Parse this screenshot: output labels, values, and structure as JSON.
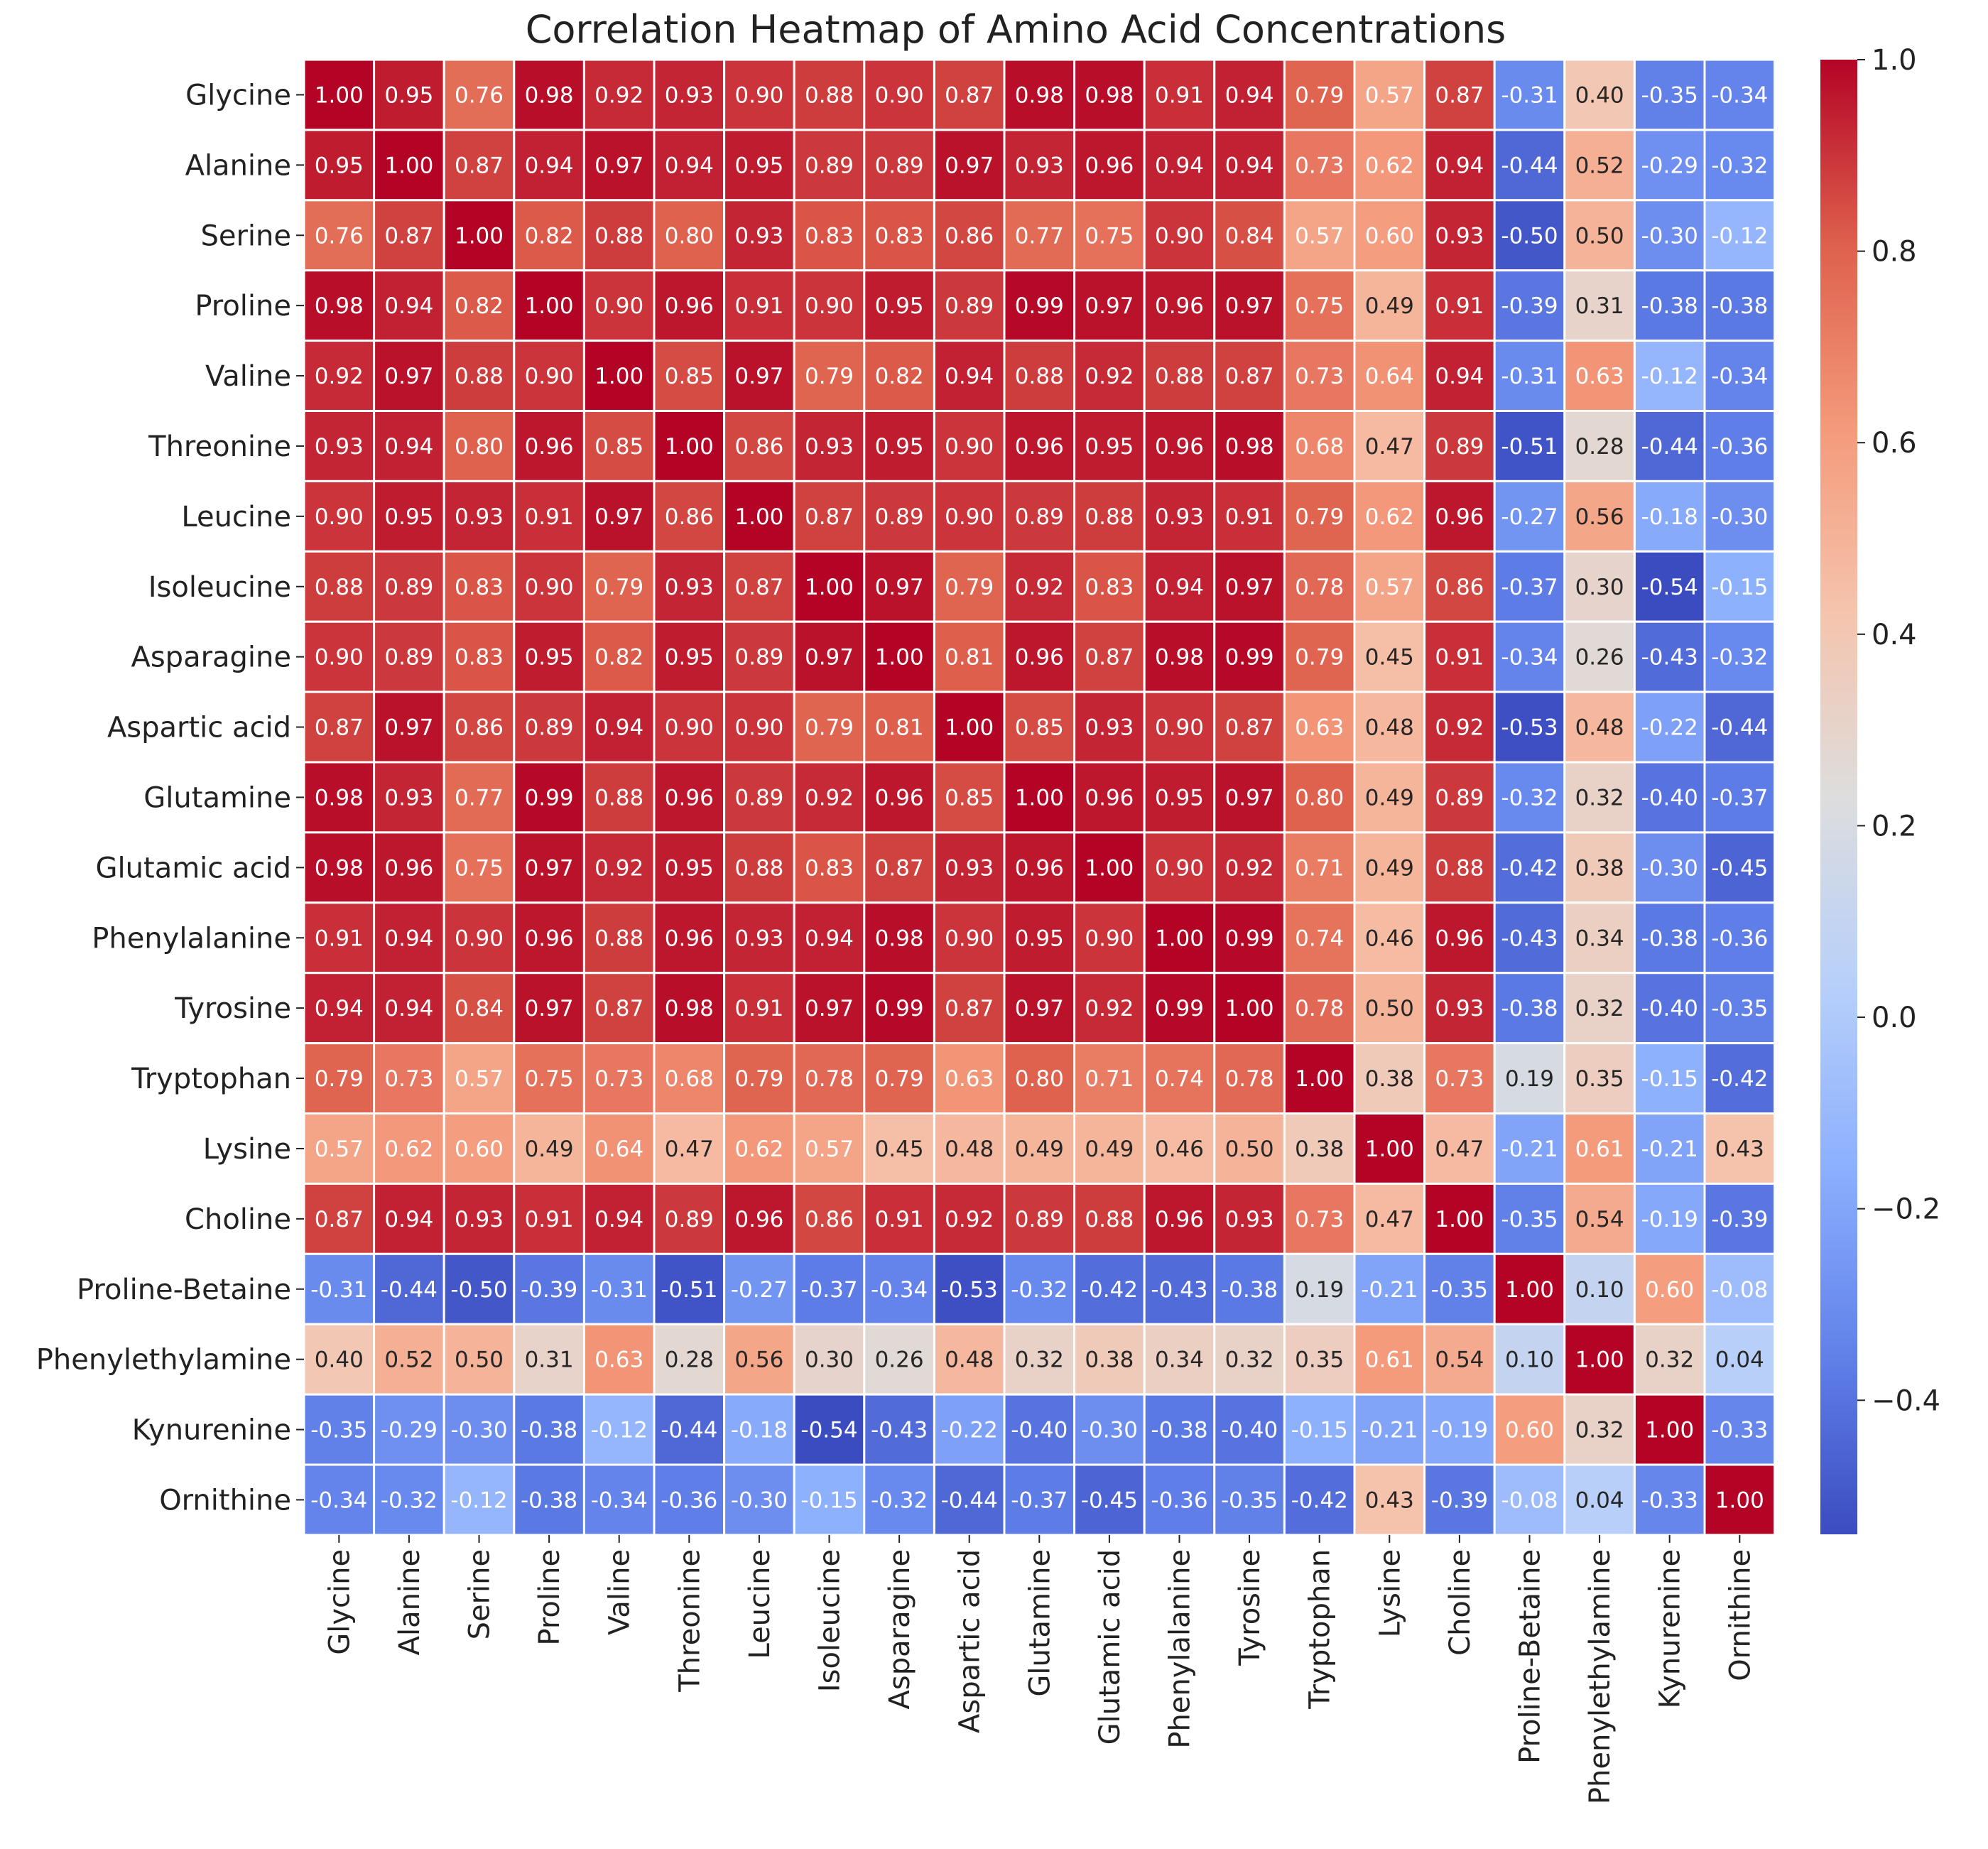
{
  "chart_data": {
    "type": "heatmap",
    "title": "Correlation Heatmap of Amino Acid Concentrations",
    "xlabel": "",
    "ylabel": "",
    "labels": [
      "Glycine",
      "Alanine",
      "Serine",
      "Proline",
      "Valine",
      "Threonine",
      "Leucine",
      "Isoleucine",
      "Asparagine",
      "Aspartic acid",
      "Glutamine",
      "Glutamic acid",
      "Phenylalanine",
      "Tyrosine",
      "Tryptophan",
      "Lysine",
      "Choline",
      "Proline-Betaine",
      "Phenylethylamine",
      "Kynurenine",
      "Ornithine"
    ],
    "matrix": [
      [
        1.0,
        0.95,
        0.76,
        0.98,
        0.92,
        0.93,
        0.9,
        0.88,
        0.9,
        0.87,
        0.98,
        0.98,
        0.91,
        0.94,
        0.79,
        0.57,
        0.87,
        -0.31,
        0.4,
        -0.35,
        -0.34
      ],
      [
        0.95,
        1.0,
        0.87,
        0.94,
        0.97,
        0.94,
        0.95,
        0.89,
        0.89,
        0.97,
        0.93,
        0.96,
        0.94,
        0.94,
        0.73,
        0.62,
        0.94,
        -0.44,
        0.52,
        -0.29,
        -0.32
      ],
      [
        0.76,
        0.87,
        1.0,
        0.82,
        0.88,
        0.8,
        0.93,
        0.83,
        0.83,
        0.86,
        0.77,
        0.75,
        0.9,
        0.84,
        0.57,
        0.6,
        0.93,
        -0.5,
        0.5,
        -0.3,
        -0.12
      ],
      [
        0.98,
        0.94,
        0.82,
        1.0,
        0.9,
        0.96,
        0.91,
        0.9,
        0.95,
        0.89,
        0.99,
        0.97,
        0.96,
        0.97,
        0.75,
        0.49,
        0.91,
        -0.39,
        0.31,
        -0.38,
        -0.38
      ],
      [
        0.92,
        0.97,
        0.88,
        0.9,
        1.0,
        0.85,
        0.97,
        0.79,
        0.82,
        0.94,
        0.88,
        0.92,
        0.88,
        0.87,
        0.73,
        0.64,
        0.94,
        -0.31,
        0.63,
        -0.12,
        -0.34
      ],
      [
        0.93,
        0.94,
        0.8,
        0.96,
        0.85,
        1.0,
        0.86,
        0.93,
        0.95,
        0.9,
        0.96,
        0.95,
        0.96,
        0.98,
        0.68,
        0.47,
        0.89,
        -0.51,
        0.28,
        -0.44,
        -0.36
      ],
      [
        0.9,
        0.95,
        0.93,
        0.91,
        0.97,
        0.86,
        1.0,
        0.87,
        0.89,
        0.9,
        0.89,
        0.88,
        0.93,
        0.91,
        0.79,
        0.62,
        0.96,
        -0.27,
        0.56,
        -0.18,
        -0.3
      ],
      [
        0.88,
        0.89,
        0.83,
        0.9,
        0.79,
        0.93,
        0.87,
        1.0,
        0.97,
        0.79,
        0.92,
        0.83,
        0.94,
        0.97,
        0.78,
        0.57,
        0.86,
        -0.37,
        0.3,
        -0.54,
        -0.15
      ],
      [
        0.9,
        0.89,
        0.83,
        0.95,
        0.82,
        0.95,
        0.89,
        0.97,
        1.0,
        0.81,
        0.96,
        0.87,
        0.98,
        0.99,
        0.79,
        0.45,
        0.91,
        -0.34,
        0.26,
        -0.43,
        -0.32
      ],
      [
        0.87,
        0.97,
        0.86,
        0.89,
        0.94,
        0.9,
        0.9,
        0.79,
        0.81,
        1.0,
        0.85,
        0.93,
        0.9,
        0.87,
        0.63,
        0.48,
        0.92,
        -0.53,
        0.48,
        -0.22,
        -0.44
      ],
      [
        0.98,
        0.93,
        0.77,
        0.99,
        0.88,
        0.96,
        0.89,
        0.92,
        0.96,
        0.85,
        1.0,
        0.96,
        0.95,
        0.97,
        0.8,
        0.49,
        0.89,
        -0.32,
        0.32,
        -0.4,
        -0.37
      ],
      [
        0.98,
        0.96,
        0.75,
        0.97,
        0.92,
        0.95,
        0.88,
        0.83,
        0.87,
        0.93,
        0.96,
        1.0,
        0.9,
        0.92,
        0.71,
        0.49,
        0.88,
        -0.42,
        0.38,
        -0.3,
        -0.45
      ],
      [
        0.91,
        0.94,
        0.9,
        0.96,
        0.88,
        0.96,
        0.93,
        0.94,
        0.98,
        0.9,
        0.95,
        0.9,
        1.0,
        0.99,
        0.74,
        0.46,
        0.96,
        -0.43,
        0.34,
        -0.38,
        -0.36
      ],
      [
        0.94,
        0.94,
        0.84,
        0.97,
        0.87,
        0.98,
        0.91,
        0.97,
        0.99,
        0.87,
        0.97,
        0.92,
        0.99,
        1.0,
        0.78,
        0.5,
        0.93,
        -0.38,
        0.32,
        -0.4,
        -0.35
      ],
      [
        0.79,
        0.73,
        0.57,
        0.75,
        0.73,
        0.68,
        0.79,
        0.78,
        0.79,
        0.63,
        0.8,
        0.71,
        0.74,
        0.78,
        1.0,
        0.38,
        0.73,
        0.19,
        0.35,
        -0.15,
        -0.42
      ],
      [
        0.57,
        0.62,
        0.6,
        0.49,
        0.64,
        0.47,
        0.62,
        0.57,
        0.45,
        0.48,
        0.49,
        0.49,
        0.46,
        0.5,
        0.38,
        1.0,
        0.47,
        -0.21,
        0.61,
        -0.21,
        0.43
      ],
      [
        0.87,
        0.94,
        0.93,
        0.91,
        0.94,
        0.89,
        0.96,
        0.86,
        0.91,
        0.92,
        0.89,
        0.88,
        0.96,
        0.93,
        0.73,
        0.47,
        1.0,
        -0.35,
        0.54,
        -0.19,
        -0.39
      ],
      [
        -0.31,
        -0.44,
        -0.5,
        -0.39,
        -0.31,
        -0.51,
        -0.27,
        -0.37,
        -0.34,
        -0.53,
        -0.32,
        -0.42,
        -0.43,
        -0.38,
        0.19,
        -0.21,
        -0.35,
        1.0,
        0.1,
        0.6,
        -0.08
      ],
      [
        0.4,
        0.52,
        0.5,
        0.31,
        0.63,
        0.28,
        0.56,
        0.3,
        0.26,
        0.48,
        0.32,
        0.38,
        0.34,
        0.32,
        0.35,
        0.61,
        0.54,
        0.1,
        1.0,
        0.32,
        0.04
      ],
      [
        -0.35,
        -0.29,
        -0.3,
        -0.38,
        -0.12,
        -0.44,
        -0.18,
        -0.54,
        -0.43,
        -0.22,
        -0.4,
        -0.3,
        -0.38,
        -0.4,
        -0.15,
        -0.21,
        -0.19,
        0.6,
        0.32,
        1.0,
        -0.33
      ],
      [
        -0.34,
        -0.32,
        -0.12,
        -0.38,
        -0.34,
        -0.36,
        -0.3,
        -0.15,
        -0.32,
        -0.44,
        -0.37,
        -0.45,
        -0.36,
        -0.35,
        -0.42,
        0.43,
        -0.39,
        -0.08,
        0.04,
        -0.33,
        1.0
      ]
    ],
    "colorbar": {
      "colormap": "coolwarm",
      "vmin": -0.54,
      "vmax": 1.0,
      "ticks": [
        1.0,
        0.8,
        0.6,
        0.4,
        0.2,
        0.0,
        -0.2,
        -0.4
      ],
      "tick_labels": [
        "1.0",
        "0.8",
        "0.6",
        "0.4",
        "0.2",
        "0.0",
        "−0.2",
        "−0.4"
      ]
    },
    "value_format": "2 decimals"
  }
}
